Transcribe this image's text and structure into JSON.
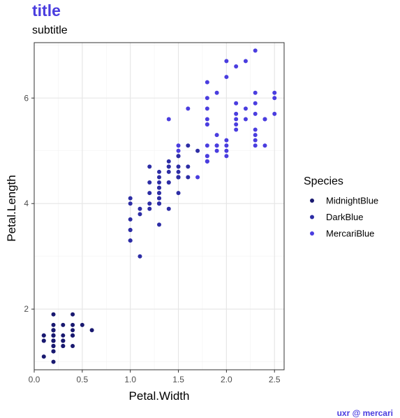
{
  "colors": {
    "title": "#4a3ddf",
    "caption": "#4a3ddf",
    "panel_border": "#333333",
    "grid_major": "#e5e5e5",
    "grid_minor": "#f2f2f2",
    "tick": "#333333"
  },
  "chart_data": {
    "type": "scatter",
    "title": "title",
    "subtitle": "subtitle",
    "xlabel": "Petal.Width",
    "ylabel": "Petal.Length",
    "caption": "uxr @ mercari",
    "xlim": [
      0.0,
      2.6
    ],
    "ylim": [
      0.85,
      7.05
    ],
    "x_ticks": [
      0.0,
      0.5,
      1.0,
      1.5,
      2.0,
      2.5
    ],
    "x_tick_labels": [
      "0.0",
      "0.5",
      "1.0",
      "1.5",
      "2.0",
      "2.5"
    ],
    "y_ticks": [
      2,
      4,
      6
    ],
    "y_tick_labels": [
      "2",
      "4",
      "6"
    ],
    "grid": true,
    "legend": {
      "title": "Species",
      "position": "right"
    },
    "series": [
      {
        "name": "MidnightBlue",
        "color": "#191970",
        "points": [
          [
            0.2,
            1.4
          ],
          [
            0.2,
            1.4
          ],
          [
            0.2,
            1.3
          ],
          [
            0.2,
            1.5
          ],
          [
            0.2,
            1.4
          ],
          [
            0.4,
            1.7
          ],
          [
            0.3,
            1.4
          ],
          [
            0.2,
            1.5
          ],
          [
            0.2,
            1.4
          ],
          [
            0.1,
            1.5
          ],
          [
            0.2,
            1.5
          ],
          [
            0.2,
            1.6
          ],
          [
            0.1,
            1.4
          ],
          [
            0.1,
            1.1
          ],
          [
            0.2,
            1.2
          ],
          [
            0.4,
            1.5
          ],
          [
            0.4,
            1.3
          ],
          [
            0.3,
            1.4
          ],
          [
            0.3,
            1.7
          ],
          [
            0.3,
            1.5
          ],
          [
            0.2,
            1.7
          ],
          [
            0.4,
            1.5
          ],
          [
            0.2,
            1.0
          ],
          [
            0.5,
            1.7
          ],
          [
            0.2,
            1.9
          ],
          [
            0.2,
            1.6
          ],
          [
            0.4,
            1.6
          ],
          [
            0.2,
            1.5
          ],
          [
            0.2,
            1.4
          ],
          [
            0.2,
            1.6
          ],
          [
            0.2,
            1.6
          ],
          [
            0.4,
            1.5
          ],
          [
            0.1,
            1.5
          ],
          [
            0.2,
            1.4
          ],
          [
            0.2,
            1.5
          ],
          [
            0.2,
            1.2
          ],
          [
            0.2,
            1.3
          ],
          [
            0.1,
            1.4
          ],
          [
            0.2,
            1.3
          ],
          [
            0.2,
            1.5
          ],
          [
            0.3,
            1.3
          ],
          [
            0.3,
            1.3
          ],
          [
            0.2,
            1.3
          ],
          [
            0.6,
            1.6
          ],
          [
            0.4,
            1.9
          ],
          [
            0.3,
            1.4
          ],
          [
            0.2,
            1.6
          ],
          [
            0.2,
            1.4
          ],
          [
            0.2,
            1.5
          ],
          [
            0.2,
            1.4
          ]
        ]
      },
      {
        "name": "DarkBlue",
        "color": "#2d2da5",
        "points": [
          [
            1.4,
            4.7
          ],
          [
            1.5,
            4.5
          ],
          [
            1.5,
            4.9
          ],
          [
            1.3,
            4.0
          ],
          [
            1.5,
            4.6
          ],
          [
            1.3,
            4.5
          ],
          [
            1.6,
            4.7
          ],
          [
            1.0,
            3.3
          ],
          [
            1.3,
            4.6
          ],
          [
            1.4,
            3.9
          ],
          [
            1.0,
            3.5
          ],
          [
            1.5,
            4.2
          ],
          [
            1.0,
            4.0
          ],
          [
            1.4,
            4.7
          ],
          [
            1.3,
            3.6
          ],
          [
            1.4,
            4.4
          ],
          [
            1.5,
            4.5
          ],
          [
            1.0,
            4.1
          ],
          [
            1.5,
            4.5
          ],
          [
            1.1,
            3.9
          ],
          [
            1.8,
            4.8
          ],
          [
            1.3,
            4.0
          ],
          [
            1.5,
            4.9
          ],
          [
            1.2,
            4.7
          ],
          [
            1.3,
            4.3
          ],
          [
            1.4,
            4.4
          ],
          [
            1.4,
            4.8
          ],
          [
            1.7,
            5.0
          ],
          [
            1.5,
            4.5
          ],
          [
            1.0,
            3.5
          ],
          [
            1.1,
            3.8
          ],
          [
            1.0,
            3.7
          ],
          [
            1.2,
            3.9
          ],
          [
            1.6,
            5.1
          ],
          [
            1.5,
            4.5
          ],
          [
            1.6,
            4.5
          ],
          [
            1.5,
            4.7
          ],
          [
            1.3,
            4.4
          ],
          [
            1.3,
            4.1
          ],
          [
            1.3,
            4.0
          ],
          [
            1.2,
            4.4
          ],
          [
            1.4,
            4.6
          ],
          [
            1.2,
            4.0
          ],
          [
            1.0,
            3.3
          ],
          [
            1.3,
            4.2
          ],
          [
            1.2,
            4.2
          ],
          [
            1.3,
            4.2
          ],
          [
            1.3,
            4.3
          ],
          [
            1.1,
            3.0
          ],
          [
            1.3,
            4.1
          ]
        ]
      },
      {
        "name": "MercariBlue",
        "color": "#4a3ddf",
        "points": [
          [
            2.5,
            6.0
          ],
          [
            1.9,
            5.1
          ],
          [
            2.1,
            5.9
          ],
          [
            1.8,
            5.6
          ],
          [
            2.2,
            5.8
          ],
          [
            2.1,
            6.6
          ],
          [
            1.7,
            4.5
          ],
          [
            1.8,
            6.3
          ],
          [
            1.8,
            5.8
          ],
          [
            2.5,
            6.1
          ],
          [
            2.0,
            5.1
          ],
          [
            1.9,
            5.3
          ],
          [
            2.1,
            5.5
          ],
          [
            2.0,
            5.0
          ],
          [
            2.4,
            5.1
          ],
          [
            2.3,
            5.3
          ],
          [
            1.8,
            5.5
          ],
          [
            2.2,
            6.7
          ],
          [
            2.3,
            6.9
          ],
          [
            1.5,
            5.0
          ],
          [
            2.3,
            5.7
          ],
          [
            2.0,
            4.9
          ],
          [
            2.0,
            6.7
          ],
          [
            1.8,
            4.9
          ],
          [
            2.1,
            5.7
          ],
          [
            1.8,
            6.0
          ],
          [
            1.8,
            4.8
          ],
          [
            1.8,
            4.9
          ],
          [
            2.1,
            5.6
          ],
          [
            1.6,
            5.8
          ],
          [
            1.9,
            6.1
          ],
          [
            2.0,
            6.4
          ],
          [
            2.2,
            5.6
          ],
          [
            1.5,
            5.1
          ],
          [
            1.4,
            5.6
          ],
          [
            2.3,
            6.1
          ],
          [
            2.4,
            5.6
          ],
          [
            1.8,
            5.5
          ],
          [
            1.8,
            4.8
          ],
          [
            2.1,
            5.4
          ],
          [
            2.4,
            5.6
          ],
          [
            2.3,
            5.1
          ],
          [
            1.9,
            5.1
          ],
          [
            2.3,
            5.9
          ],
          [
            2.5,
            5.7
          ],
          [
            2.3,
            5.2
          ],
          [
            1.9,
            5.0
          ],
          [
            2.0,
            5.2
          ],
          [
            2.3,
            5.4
          ],
          [
            1.8,
            5.1
          ]
        ]
      }
    ]
  }
}
